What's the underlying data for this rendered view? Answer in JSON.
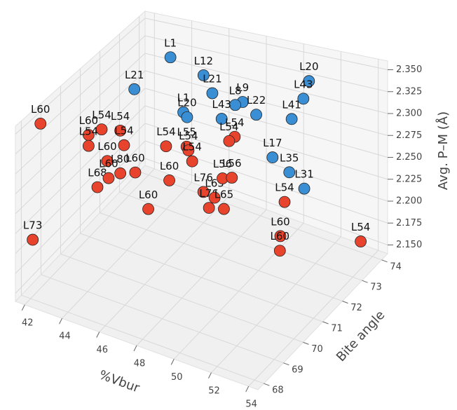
{
  "chart_data": {
    "type": "scatter3d",
    "xlabel": "%Vbur",
    "ylabel": "Bite angle",
    "zlabel": "Avg. P–M (Å)",
    "xlim": [
      41.5,
      54.5
    ],
    "ylim": [
      67.7,
      74.3
    ],
    "zlim": [
      2.14,
      2.36
    ],
    "xticks": [
      42,
      44,
      46,
      48,
      50,
      52,
      54
    ],
    "yticks": [
      68,
      69,
      70,
      71,
      72,
      73,
      74
    ],
    "zticks": [
      {
        "value": 2.15,
        "label": "2.150"
      },
      {
        "value": 2.175,
        "label": "2.175"
      },
      {
        "value": 2.2,
        "label": "2.200"
      },
      {
        "value": 2.225,
        "label": "2.225"
      },
      {
        "value": 2.25,
        "label": "2.250"
      },
      {
        "value": 2.275,
        "label": "2.275"
      },
      {
        "value": 2.3,
        "label": "2.300"
      },
      {
        "value": 2.325,
        "label": "2.325"
      },
      {
        "value": 2.35,
        "label": "2.350"
      }
    ],
    "grid": true,
    "series": [
      {
        "color": "#3a8fd4",
        "x": [
          43.7,
          46.0,
          44.4,
          47.0,
          48.1,
          47.7,
          48.3,
          46.5,
          46.7,
          47.5,
          50.6,
          50.3,
          50.2,
          49.7,
          50.6,
          51.4
        ],
        "y": [
          73.5,
          73,
          71,
          72.5,
          73,
          73,
          73.5,
          71.5,
          71.5,
          72.5,
          74,
          74,
          73.5,
          73,
          73,
          73
        ],
        "z": [
          2.328,
          2.329,
          2.348,
          2.323,
          2.307,
          2.301,
          2.281,
          2.319,
          2.314,
          2.294,
          2.324,
          2.301,
          2.287,
          2.249,
          2.237,
          2.223
        ],
        "point_labels": [
          "L1",
          "L12",
          "L21",
          "L21",
          "L9",
          "L8",
          "L22",
          "L1",
          "L20",
          "L43",
          "L20",
          "L43",
          "L41",
          "L17",
          "L35",
          "L31"
        ]
      },
      {
        "color": "#e8432d",
        "x": [
          42.0,
          41.9,
          43.7,
          44.7,
          44.9,
          43.0,
          43.0,
          44.0,
          44.7,
          45.5,
          44.0,
          44.6,
          46.1,
          47.2,
          47.3,
          47.5,
          46.8,
          46.2,
          48.2,
          47.9,
          48.1,
          48.4,
          48.7,
          49.2,
          48.6,
          49.1,
          51.4,
          51.7,
          52.2,
          53.9
        ],
        "y": [
          68.5,
          68.2,
          70,
          70,
          70,
          70,
          70,
          70,
          70,
          70,
          69.5,
          69.5,
          71,
          71,
          71,
          71,
          70.5,
          70,
          72.5,
          72.5,
          71,
          71,
          71,
          71,
          71.5,
          71.5,
          72,
          71.5,
          71,
          73.5
        ],
        "z": [
          2.348,
          2.208,
          2.316,
          2.32,
          2.303,
          2.305,
          2.291,
          2.278,
          2.267,
          2.273,
          2.257,
          2.272,
          2.286,
          2.292,
          2.288,
          2.276,
          2.26,
          2.233,
          2.276,
          2.269,
          2.243,
          2.226,
          2.24,
          2.23,
          2.251,
          2.255,
          2.23,
          2.204,
          2.202,
          2.168
        ],
        "point_labels": [
          "L60",
          "L73",
          "L54",
          "L54",
          "L54",
          "L60",
          "L54",
          "L60",
          "L80",
          "L60",
          "L68",
          "L60",
          "L54",
          "L55",
          "L54",
          "L54",
          "L60",
          "L60",
          "L54",
          "L54",
          "L76",
          "L76",
          "L65",
          "L65",
          "L56",
          "L56",
          "L54",
          "L60",
          "L60",
          "L54"
        ]
      }
    ]
  }
}
